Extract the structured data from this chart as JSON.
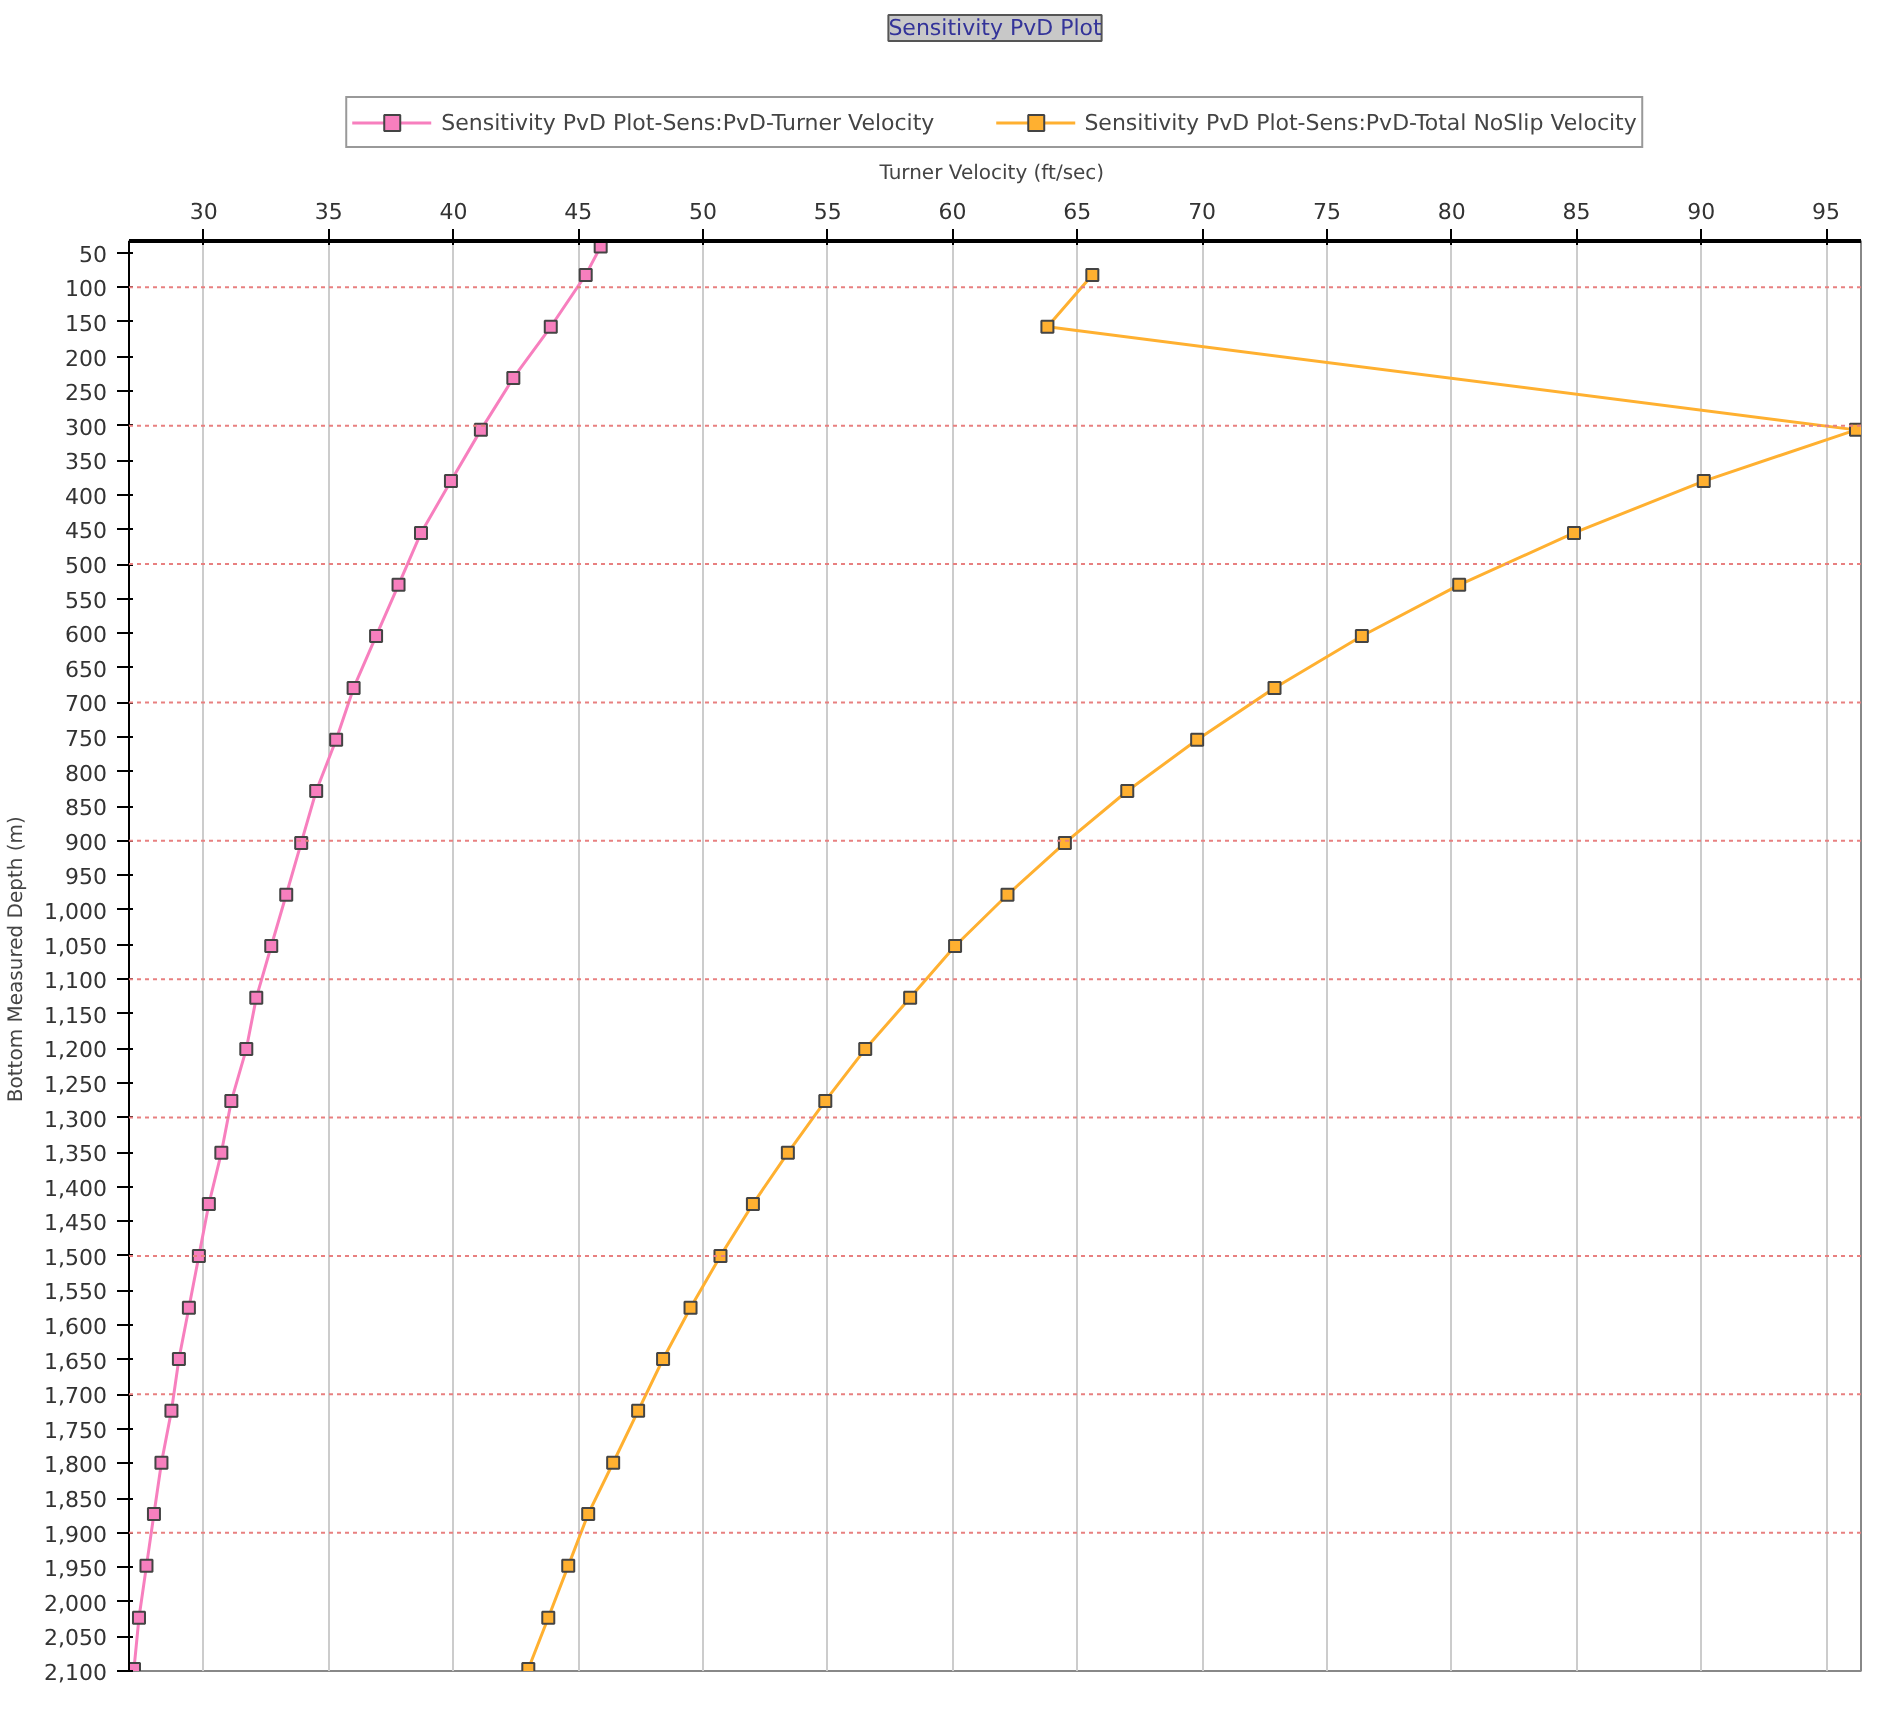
{
  "chart_data": {
    "type": "line",
    "title": "Sensitivity PvD Plot",
    "xlabel": "Turner Velocity  (ft/sec)",
    "ylabel": "Bottom Measured Depth  (m)",
    "xlim": [
      27.0,
      96.4
    ],
    "xticks": [
      30,
      35,
      40,
      45,
      50,
      55,
      60,
      65,
      70,
      75,
      80,
      85,
      90,
      95
    ],
    "ylim": [
      2100,
      33
    ],
    "yticks": [
      50,
      100,
      150,
      200,
      250,
      300,
      350,
      400,
      450,
      500,
      550,
      600,
      650,
      700,
      750,
      800,
      850,
      900,
      950,
      {
        "value": 1000,
        "label": "1,000"
      },
      {
        "value": 1050,
        "label": "1,050"
      },
      {
        "value": 1100,
        "label": "1,100"
      },
      {
        "value": 1150,
        "label": "1,150"
      },
      {
        "value": 1200,
        "label": "1,200"
      },
      {
        "value": 1250,
        "label": "1,250"
      },
      {
        "value": 1300,
        "label": "1,300"
      },
      {
        "value": 1350,
        "label": "1,350"
      },
      {
        "value": 1400,
        "label": "1,400"
      },
      {
        "value": 1450,
        "label": "1,450"
      },
      {
        "value": 1500,
        "label": "1,500"
      },
      {
        "value": 1550,
        "label": "1,550"
      },
      {
        "value": 1600,
        "label": "1,600"
      },
      {
        "value": 1650,
        "label": "1,650"
      },
      {
        "value": 1700,
        "label": "1,700"
      },
      {
        "value": 1750,
        "label": "1,750"
      },
      {
        "value": 1800,
        "label": "1,800"
      },
      {
        "value": 1850,
        "label": "1,850"
      },
      {
        "value": 1900,
        "label": "1,900"
      },
      {
        "value": 1950,
        "label": "1,950"
      },
      {
        "value": 2000,
        "label": "2,000"
      },
      {
        "value": 2050,
        "label": "2,050"
      },
      {
        "value": 2100,
        "label": "2,100"
      }
    ],
    "grid": "x",
    "legend": "top",
    "marker": "square",
    "line_style": "solid",
    "ref_lines": [
      {
        "axis": "y",
        "value": 100,
        "color": "#e88080",
        "line_style": "dotted"
      },
      {
        "axis": "y",
        "value": 300,
        "color": "#e88080",
        "line_style": "dotted"
      },
      {
        "axis": "y",
        "value": 500,
        "color": "#e88080",
        "line_style": "dotted"
      },
      {
        "axis": "y",
        "value": 700,
        "color": "#e88080",
        "line_style": "dotted"
      },
      {
        "axis": "y",
        "value": 900,
        "color": "#e88080",
        "line_style": "dotted"
      },
      {
        "axis": "y",
        "value": 1100,
        "color": "#e88080",
        "line_style": "dotted"
      },
      {
        "axis": "y",
        "value": 1300,
        "color": "#e88080",
        "line_style": "dotted"
      },
      {
        "axis": "y",
        "value": 1500,
        "color": "#e88080",
        "line_style": "dotted"
      },
      {
        "axis": "y",
        "value": 1700,
        "color": "#e88080",
        "line_style": "dotted"
      },
      {
        "axis": "y",
        "value": 1900,
        "color": "#e88080",
        "line_style": "dotted"
      }
    ],
    "series": [
      {
        "name": "Sensitivity PvD Plot-Sens:PvD-Turner Velocity",
        "color": "#f77fbe",
        "x": [
          45.9,
          45.3,
          43.9,
          42.4,
          41.1,
          39.9,
          38.7,
          37.8,
          36.9,
          36.0,
          35.3,
          34.5,
          33.9,
          33.3,
          32.7,
          32.1,
          31.7,
          31.1,
          30.7,
          30.2,
          29.8,
          29.4,
          29.0,
          28.7,
          28.3,
          28.0,
          27.7,
          27.4,
          27.2
        ],
        "values": [
          41,
          82,
          157,
          231,
          306,
          380,
          455,
          530,
          604,
          679,
          754,
          828,
          903,
          978,
          1052,
          1127,
          1201,
          1276,
          1351,
          1425,
          1500,
          1575,
          1649,
          1724,
          1799,
          1873,
          1948,
          2023,
          2097
        ]
      },
      {
        "name": "Sensitivity PvD Plot-Sens:PvD-Total NoSlip Velocity",
        "color": "#ffb030",
        "x": [
          65.6,
          63.8,
          96.2,
          90.1,
          84.9,
          80.3,
          76.4,
          72.9,
          69.8,
          67.0,
          64.5,
          62.2,
          60.1,
          58.3,
          56.5,
          54.9,
          53.4,
          52.0,
          50.7,
          49.5,
          48.4,
          47.4,
          46.4,
          45.4,
          44.6,
          43.8,
          43.0
        ],
        "values": [
          82,
          157,
          306,
          380,
          455,
          530,
          604,
          679,
          754,
          828,
          903,
          978,
          1052,
          1127,
          1201,
          1276,
          1351,
          1425,
          1500,
          1575,
          1649,
          1724,
          1799,
          1873,
          1948,
          2023,
          2097
        ]
      }
    ]
  }
}
